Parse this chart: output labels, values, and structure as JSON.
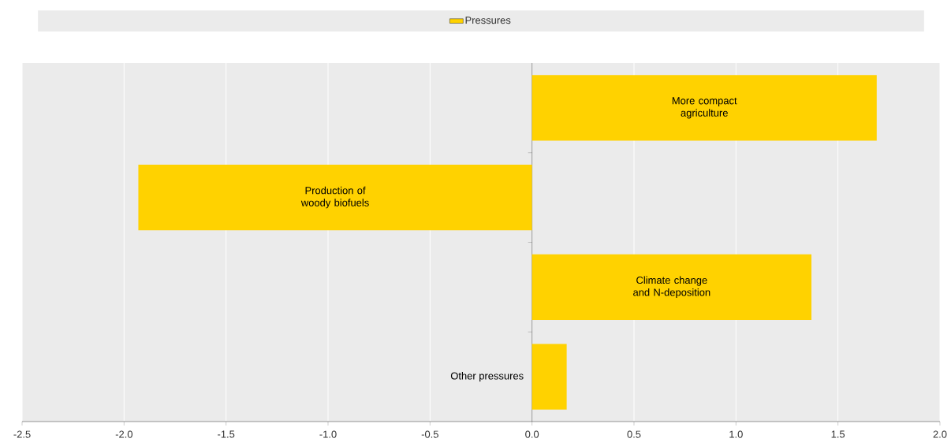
{
  "chart_data": {
    "type": "bar",
    "orientation": "horizontal",
    "categories": [
      "More compact agriculture",
      "Production of woody biofuels",
      "Climate change and N-deposition",
      "Other pressures"
    ],
    "series": [
      {
        "name": "Pressures",
        "color": "#ffd200",
        "values": [
          1.69,
          -1.93,
          1.37,
          0.17
        ]
      }
    ],
    "xlim": [
      -2.5,
      2.0
    ],
    "xticks": [
      -2.5,
      {
        "value": -2.0,
        "label": "-2.0"
      },
      {
        "value": -1.5,
        "label": "-1.5"
      },
      {
        "value": -1.0,
        "label": "-1.0"
      },
      -0.5,
      {
        "value": 0.0,
        "label": "0.0"
      },
      0.5,
      {
        "value": 1.0,
        "label": "1.0"
      },
      1.5,
      {
        "value": 2.0,
        "label": "2.0"
      }
    ],
    "grid": "x",
    "legend": "top"
  }
}
